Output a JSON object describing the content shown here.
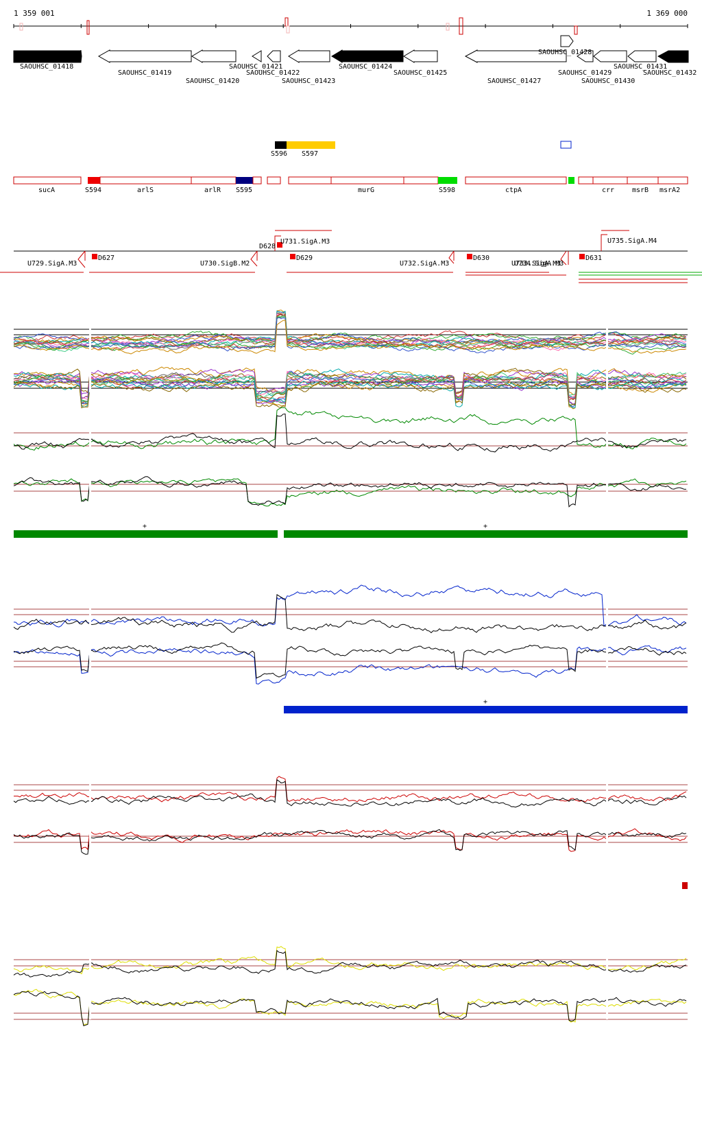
{
  "coords": {
    "start": "1 359 001",
    "end": "1 369 000"
  },
  "colors": {
    "ink": "#000000",
    "feature_red": "#cc0000",
    "strand_green": "#008800",
    "strand_blue": "#0022cc",
    "strand_red": "#cc0000",
    "strand_yellow": "#dddd00",
    "segment_orange": "#ffcc00",
    "segment_navy": "#00007f",
    "segment_lime": "#00dd00",
    "segment_red": "#ee0000",
    "threshold_brown": "#aa4444"
  },
  "genes": [
    {
      "id": "SAOUHSC_01418",
      "strand": "+",
      "filled": true
    },
    {
      "id": "SAOUHSC_01419",
      "strand": "-",
      "filled": false
    },
    {
      "id": "SAOUHSC_01420",
      "strand": "-",
      "filled": false
    },
    {
      "id": "SAOUHSC_01421",
      "strand": "-",
      "filled": false
    },
    {
      "id": "SAOUHSC_01422",
      "strand": "-",
      "filled": false
    },
    {
      "id": "SAOUHSC_01423",
      "strand": "-",
      "filled": false
    },
    {
      "id": "SAOUHSC_01424",
      "strand": "-",
      "filled": true
    },
    {
      "id": "SAOUHSC_01425",
      "strand": "-",
      "filled": false
    },
    {
      "id": "SAOUHSC_01427",
      "strand": "-",
      "filled": false
    },
    {
      "id": "SAOUHSC_01428",
      "strand": "+",
      "filled": false
    },
    {
      "id": "SAOUHSC_01429",
      "strand": "-",
      "filled": false
    },
    {
      "id": "SAOUHSC_01430",
      "strand": "-",
      "filled": false
    },
    {
      "id": "SAOUHSC_01431",
      "strand": "-",
      "filled": false
    },
    {
      "id": "SAOUHSC_01432",
      "strand": "-",
      "filled": true
    }
  ],
  "segments_top": [
    {
      "id": "S596",
      "color": "black"
    },
    {
      "id": "S597",
      "color": "orange"
    }
  ],
  "segments": [
    {
      "id": "sucA",
      "kind": "gene"
    },
    {
      "id": "S594",
      "kind": "segment"
    },
    {
      "id": "arlS",
      "kind": "gene"
    },
    {
      "id": "arlR",
      "kind": "gene"
    },
    {
      "id": "S595",
      "kind": "segment"
    },
    {
      "id": "murG",
      "kind": "gene"
    },
    {
      "id": "S598",
      "kind": "segment"
    },
    {
      "id": "ctpA",
      "kind": "gene"
    },
    {
      "id": "crr",
      "kind": "gene"
    },
    {
      "id": "msrB",
      "kind": "gene"
    },
    {
      "id": "msrA2",
      "kind": "gene"
    }
  ],
  "promoters": [
    {
      "id": "U729.SigA.M3"
    },
    {
      "id": "U730.SigB.M2"
    },
    {
      "id": "U731.SigA.M3"
    },
    {
      "id": "U732.SigA.M3"
    },
    {
      "id": "U733.SigA.M3"
    },
    {
      "id": "U734.SigA.M3"
    },
    {
      "id": "U735.SigA.M4"
    }
  ],
  "downshifts": [
    {
      "id": "D627"
    },
    {
      "id": "D628"
    },
    {
      "id": "D629"
    },
    {
      "id": "D630"
    },
    {
      "id": "D631"
    }
  ],
  "strand_markers": {
    "green_1": "+",
    "green_2": "+",
    "blue_1": "+"
  }
}
